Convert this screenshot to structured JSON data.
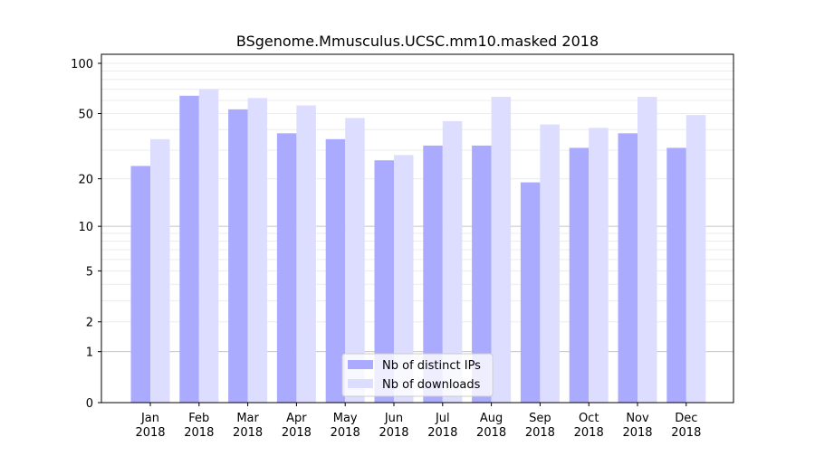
{
  "chart_data": {
    "type": "bar",
    "title": "BSgenome.Mmusculus.UCSC.mm10.masked 2018",
    "xlabel": "",
    "ylabel": "",
    "y_scale": "log(1+y)",
    "y_ticks": [
      0,
      1,
      2,
      5,
      10,
      20,
      50,
      100
    ],
    "ylim": [
      0,
      110
    ],
    "categories": [
      [
        "Jan",
        "2018"
      ],
      [
        "Feb",
        "2018"
      ],
      [
        "Mar",
        "2018"
      ],
      [
        "Apr",
        "2018"
      ],
      [
        "May",
        "2018"
      ],
      [
        "Jun",
        "2018"
      ],
      [
        "Jul",
        "2018"
      ],
      [
        "Aug",
        "2018"
      ],
      [
        "Sep",
        "2018"
      ],
      [
        "Oct",
        "2018"
      ],
      [
        "Nov",
        "2018"
      ],
      [
        "Dec",
        "2018"
      ]
    ],
    "series": [
      {
        "name": "Nb of distinct IPs",
        "color": "#aaaaff",
        "values": [
          24,
          64,
          53,
          38,
          35,
          26,
          32,
          32,
          19,
          31,
          38,
          31
        ]
      },
      {
        "name": "Nb of downloads",
        "color": "#ddddff",
        "values": [
          35,
          70,
          62,
          56,
          47,
          28,
          45,
          63,
          43,
          41,
          63,
          49
        ]
      }
    ],
    "legend": {
      "position": "lower-center"
    },
    "grid": true
  }
}
